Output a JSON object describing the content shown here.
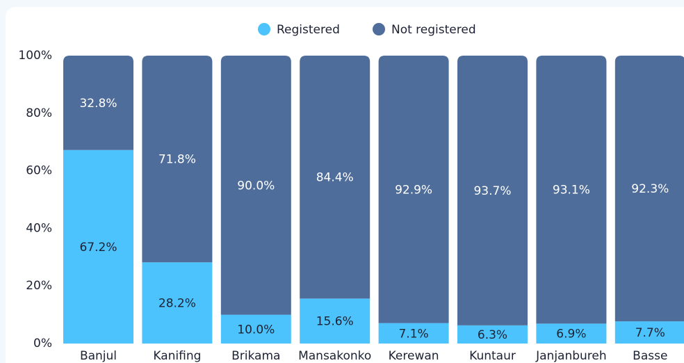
{
  "chart_data": {
    "type": "stacked_bar",
    "categories": [
      "Banjul",
      "Kanifing",
      "Brikama",
      "Mansakonko",
      "Kerewan",
      "Kuntaur",
      "Janjanbureh",
      "Basse"
    ],
    "series": [
      {
        "name": "Registered",
        "color": "#4cc3fc",
        "label_color": "#1c2233",
        "values": [
          67.2,
          28.2,
          10.0,
          15.6,
          7.1,
          6.3,
          6.9,
          7.7
        ],
        "value_labels": [
          "67.2%",
          "28.2%",
          "10.0%",
          "15.6%",
          "7.1%",
          "6.3%",
          "6.9%",
          "7.7%"
        ]
      },
      {
        "name": "Not registered",
        "color": "#4f6d9a",
        "label_color": "#ffffff",
        "values": [
          32.8,
          71.8,
          90.0,
          84.4,
          92.9,
          93.7,
          93.1,
          92.3
        ],
        "value_labels": [
          "32.8%",
          "71.8%",
          "90.0%",
          "84.4%",
          "92.9%",
          "93.7%",
          "93.1%",
          "92.3%"
        ]
      }
    ],
    "ylim": [
      0,
      100
    ],
    "yticks": [
      {
        "value": 0,
        "label": "0%"
      },
      {
        "value": 20,
        "label": "20%"
      },
      {
        "value": 40,
        "label": "40%"
      },
      {
        "value": 60,
        "label": "60%"
      },
      {
        "value": 80,
        "label": "80%"
      },
      {
        "value": 100,
        "label": "100%"
      }
    ],
    "legend": "top",
    "grid": false
  }
}
